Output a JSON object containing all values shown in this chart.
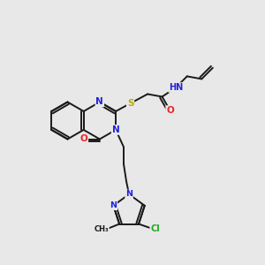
{
  "bg_color": "#e8e8e8",
  "bond_color": "#1a1a1a",
  "colors": {
    "N": "#2222dd",
    "O": "#ee2222",
    "S": "#bbaa00",
    "H": "#228888",
    "Cl": "#22aa22",
    "C": "#1a1a1a"
  },
  "figsize": [
    3.0,
    3.0
  ],
  "dpi": 100
}
